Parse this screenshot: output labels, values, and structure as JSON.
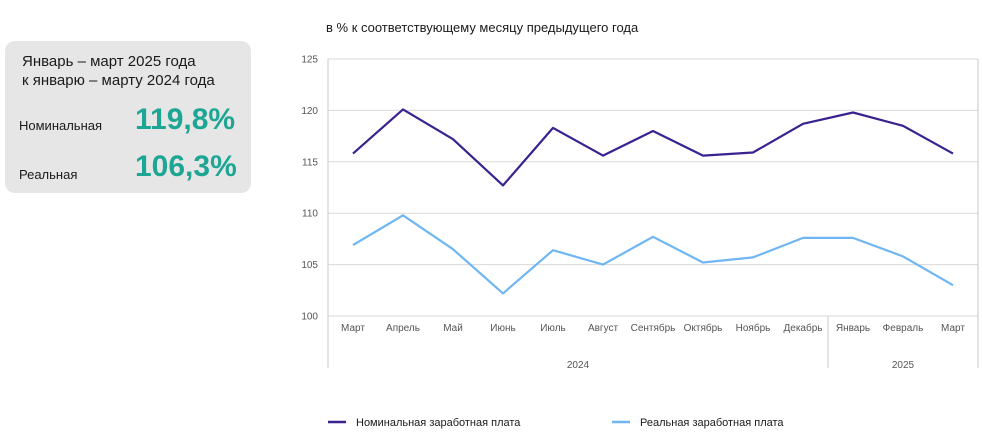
{
  "summary": {
    "period_line1": "Январь – март 2025 года",
    "period_line2": "к январю – марту 2024 года",
    "nominal_label": "Номинальная",
    "nominal_value": "119,8%",
    "real_label": "Реальная",
    "real_value": "106,3%",
    "accent_color": "#1ea694"
  },
  "chart_data": {
    "type": "line",
    "title": "в % к соответствующему месяцу предыдущего года",
    "categories": [
      "Март",
      "Апрель",
      "Май",
      "Июнь",
      "Июль",
      "Август",
      "Сентябрь",
      "Октябрь",
      "Ноябрь",
      "Декабрь",
      "Январь",
      "Февраль",
      "Март"
    ],
    "year_groups": [
      {
        "label": "2024",
        "start": 0,
        "end": 9
      },
      {
        "label": "2025",
        "start": 10,
        "end": 12
      }
    ],
    "ylim": [
      100,
      125
    ],
    "yticks": [
      "100",
      "105",
      "110",
      "115",
      "120",
      "125"
    ],
    "grid": true,
    "legend_position": "bottom",
    "series": [
      {
        "name": "Номинальная заработная плата",
        "color": "#3a2290",
        "values": [
          115.8,
          120.1,
          117.2,
          112.7,
          118.3,
          115.6,
          118.0,
          115.6,
          115.9,
          118.7,
          119.8,
          118.5,
          115.8
        ]
      },
      {
        "name": "Реальная заработная плата",
        "color": "#6fb6f2",
        "values": [
          106.9,
          109.8,
          106.5,
          102.2,
          106.4,
          105.0,
          107.7,
          105.2,
          105.7,
          107.6,
          107.6,
          105.8,
          103.0
        ]
      }
    ]
  }
}
